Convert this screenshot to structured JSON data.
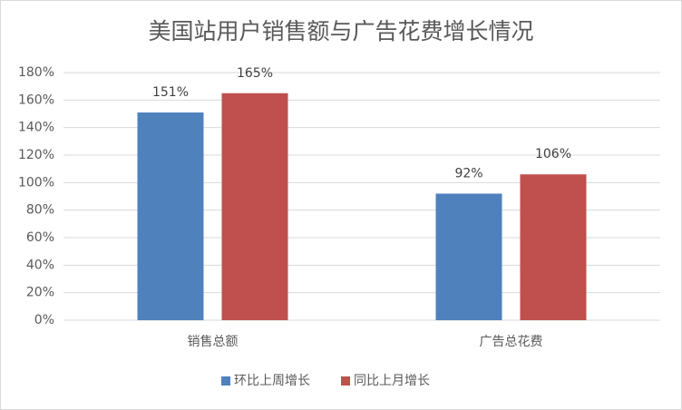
{
  "chart_data": {
    "type": "bar",
    "title": "美国站用户销售额与广告花费增长情况",
    "categories": [
      "销售总额",
      "广告总花费"
    ],
    "series": [
      {
        "name": "环比上周增长",
        "color": "#4f81bd",
        "values": [
          151,
          92
        ],
        "value_labels": [
          "151%",
          "92%"
        ]
      },
      {
        "name": "同比上月增长",
        "color": "#c0504d",
        "values": [
          165,
          106
        ],
        "value_labels": [
          "165%",
          "106%"
        ]
      }
    ],
    "ylim": [
      0,
      180
    ],
    "yticks": [
      {
        "value": 0,
        "label": "0%"
      },
      {
        "value": 20,
        "label": "20%"
      },
      {
        "value": 40,
        "label": "40%"
      },
      {
        "value": 60,
        "label": "60%"
      },
      {
        "value": 80,
        "label": "80%"
      },
      {
        "value": 100,
        "label": "100%"
      },
      {
        "value": 120,
        "label": "120%"
      },
      {
        "value": 140,
        "label": "140%"
      },
      {
        "value": 160,
        "label": "160%"
      },
      {
        "value": 180,
        "label": "180%"
      }
    ],
    "grid": true,
    "legend": "bottom"
  }
}
